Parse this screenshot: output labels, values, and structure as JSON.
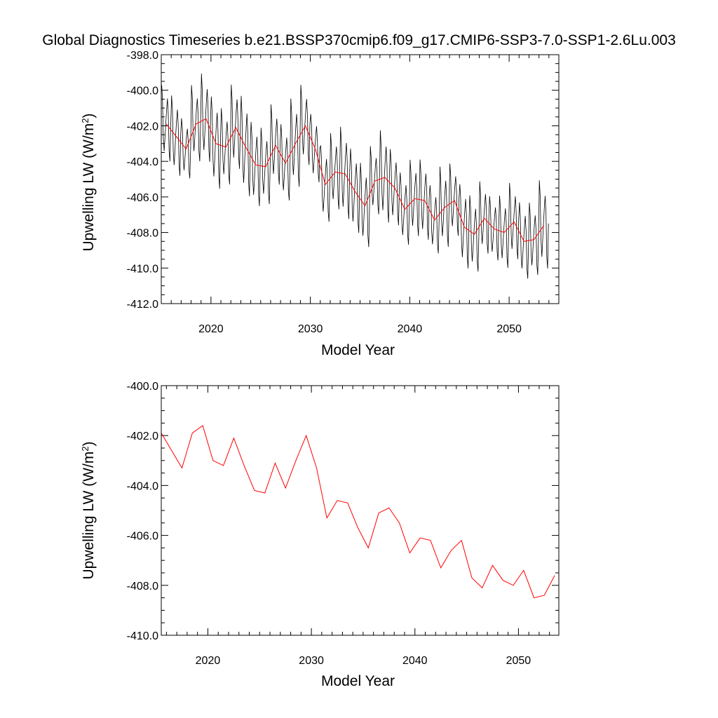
{
  "title": "Global Diagnostics Timeseries b.e21.BSSP370cmip6.f09_g17.CMIP6-SSP3-7.0-SSP1-2.6Lu.003",
  "colors": {
    "monthly": "#000000",
    "annual": "#ff0000"
  },
  "chart_data": [
    {
      "type": "line",
      "name": "monthly-and-annual-timeseries",
      "xlabel": "Model Year",
      "ylabel_main": "Upwelling LW (W/m",
      "ylabel_sup": "2",
      "ylabel_close": ")",
      "xlim": [
        2015,
        2055
      ],
      "ylim": [
        -412.0,
        -398.0
      ],
      "x_ticks": [
        2020,
        2030,
        2040,
        2050
      ],
      "x_tick_labels": [
        "2020",
        "2030",
        "2040",
        "2050"
      ],
      "y_ticks": [
        -412.0,
        -410.0,
        -408.0,
        -406.0,
        -404.0,
        -402.0,
        -400.0,
        -398.0
      ],
      "y_tick_labels": [
        "-412.0",
        "-410.0",
        "-408.0",
        "-406.0",
        "-404.0",
        "-402.0",
        "-400.0",
        "-398.0"
      ],
      "series": [
        {
          "name": "monthly",
          "color": "#000000",
          "x_start": 2015.04,
          "x_step": 0.0833333,
          "annual_cycle_amplitude": [
            1.9,
            2.0,
            1.5,
            1.9,
            2.2,
            2.3,
            1.9,
            2.1,
            2.5,
            2.1,
            1.9,
            2.0,
            1.9,
            2.2,
            2.0,
            1.7,
            1.9,
            1.9,
            2.3,
            2.1,
            2.1,
            1.7,
            2.3,
            1.9,
            1.8,
            1.9,
            2.0,
            1.7,
            2.0,
            1.8,
            2.1,
            1.9,
            1.8,
            1.6,
            1.8,
            1.9,
            1.9,
            1.8,
            2.2,
            2.0
          ],
          "annual_means_ref": "annual"
        },
        {
          "name": "annual",
          "color": "#ff0000",
          "x": [
            2015.5,
            2016.5,
            2017.5,
            2018.5,
            2019.5,
            2020.5,
            2021.5,
            2022.5,
            2023.5,
            2024.5,
            2025.5,
            2026.5,
            2027.5,
            2028.5,
            2029.5,
            2030.5,
            2031.5,
            2032.5,
            2033.5,
            2034.5,
            2035.5,
            2036.5,
            2037.5,
            2038.5,
            2039.5,
            2040.5,
            2041.5,
            2042.5,
            2043.5,
            2044.5,
            2045.5,
            2046.5,
            2047.5,
            2048.5,
            2049.5,
            2050.5,
            2051.5,
            2052.5,
            2053.5
          ],
          "values": [
            -401.9,
            -402.6,
            -403.3,
            -401.9,
            -401.6,
            -403.0,
            -403.2,
            -402.1,
            -403.2,
            -404.2,
            -404.3,
            -403.1,
            -404.1,
            -403.0,
            -402.0,
            -403.3,
            -405.3,
            -404.6,
            -404.7,
            -405.7,
            -406.5,
            -405.1,
            -404.9,
            -405.5,
            -406.7,
            -406.1,
            -406.2,
            -407.3,
            -406.6,
            -406.2,
            -407.7,
            -408.1,
            -407.2,
            -407.8,
            -408.0,
            -407.4,
            -408.5,
            -408.4,
            -407.6
          ]
        }
      ]
    },
    {
      "type": "line",
      "name": "annual-timeseries",
      "xlabel": "Model Year",
      "ylabel_main": "Upwelling LW (W/m",
      "ylabel_sup": "2",
      "ylabel_close": ")",
      "xlim": [
        2015.5,
        2053.9
      ],
      "ylim": [
        -410.0,
        -400.0
      ],
      "x_ticks": [
        2020,
        2030,
        2040,
        2050
      ],
      "x_tick_labels": [
        "2020",
        "2030",
        "2040",
        "2050"
      ],
      "y_ticks": [
        -410.0,
        -408.0,
        -406.0,
        -404.0,
        -402.0,
        -400.0
      ],
      "y_tick_labels": [
        "-410.0",
        "-408.0",
        "-406.0",
        "-404.0",
        "-402.0",
        "-400.0"
      ],
      "series": [
        {
          "name": "annual",
          "color": "#ff0000",
          "x": [
            2015.5,
            2016.5,
            2017.5,
            2018.5,
            2019.5,
            2020.5,
            2021.5,
            2022.5,
            2023.5,
            2024.5,
            2025.5,
            2026.5,
            2027.5,
            2028.5,
            2029.5,
            2030.5,
            2031.5,
            2032.5,
            2033.5,
            2034.5,
            2035.5,
            2036.5,
            2037.5,
            2038.5,
            2039.5,
            2040.5,
            2041.5,
            2042.5,
            2043.5,
            2044.5,
            2045.5,
            2046.5,
            2047.5,
            2048.5,
            2049.5,
            2050.5,
            2051.5,
            2052.5,
            2053.5
          ],
          "values": [
            -401.9,
            -402.6,
            -403.3,
            -401.9,
            -401.6,
            -403.0,
            -403.2,
            -402.1,
            -403.2,
            -404.2,
            -404.3,
            -403.1,
            -404.1,
            -403.0,
            -402.0,
            -403.3,
            -405.3,
            -404.6,
            -404.7,
            -405.7,
            -406.5,
            -405.1,
            -404.9,
            -405.5,
            -406.7,
            -406.1,
            -406.2,
            -407.3,
            -406.6,
            -406.2,
            -407.7,
            -408.1,
            -407.2,
            -407.8,
            -408.0,
            -407.4,
            -408.5,
            -408.4,
            -407.6
          ]
        }
      ]
    }
  ]
}
